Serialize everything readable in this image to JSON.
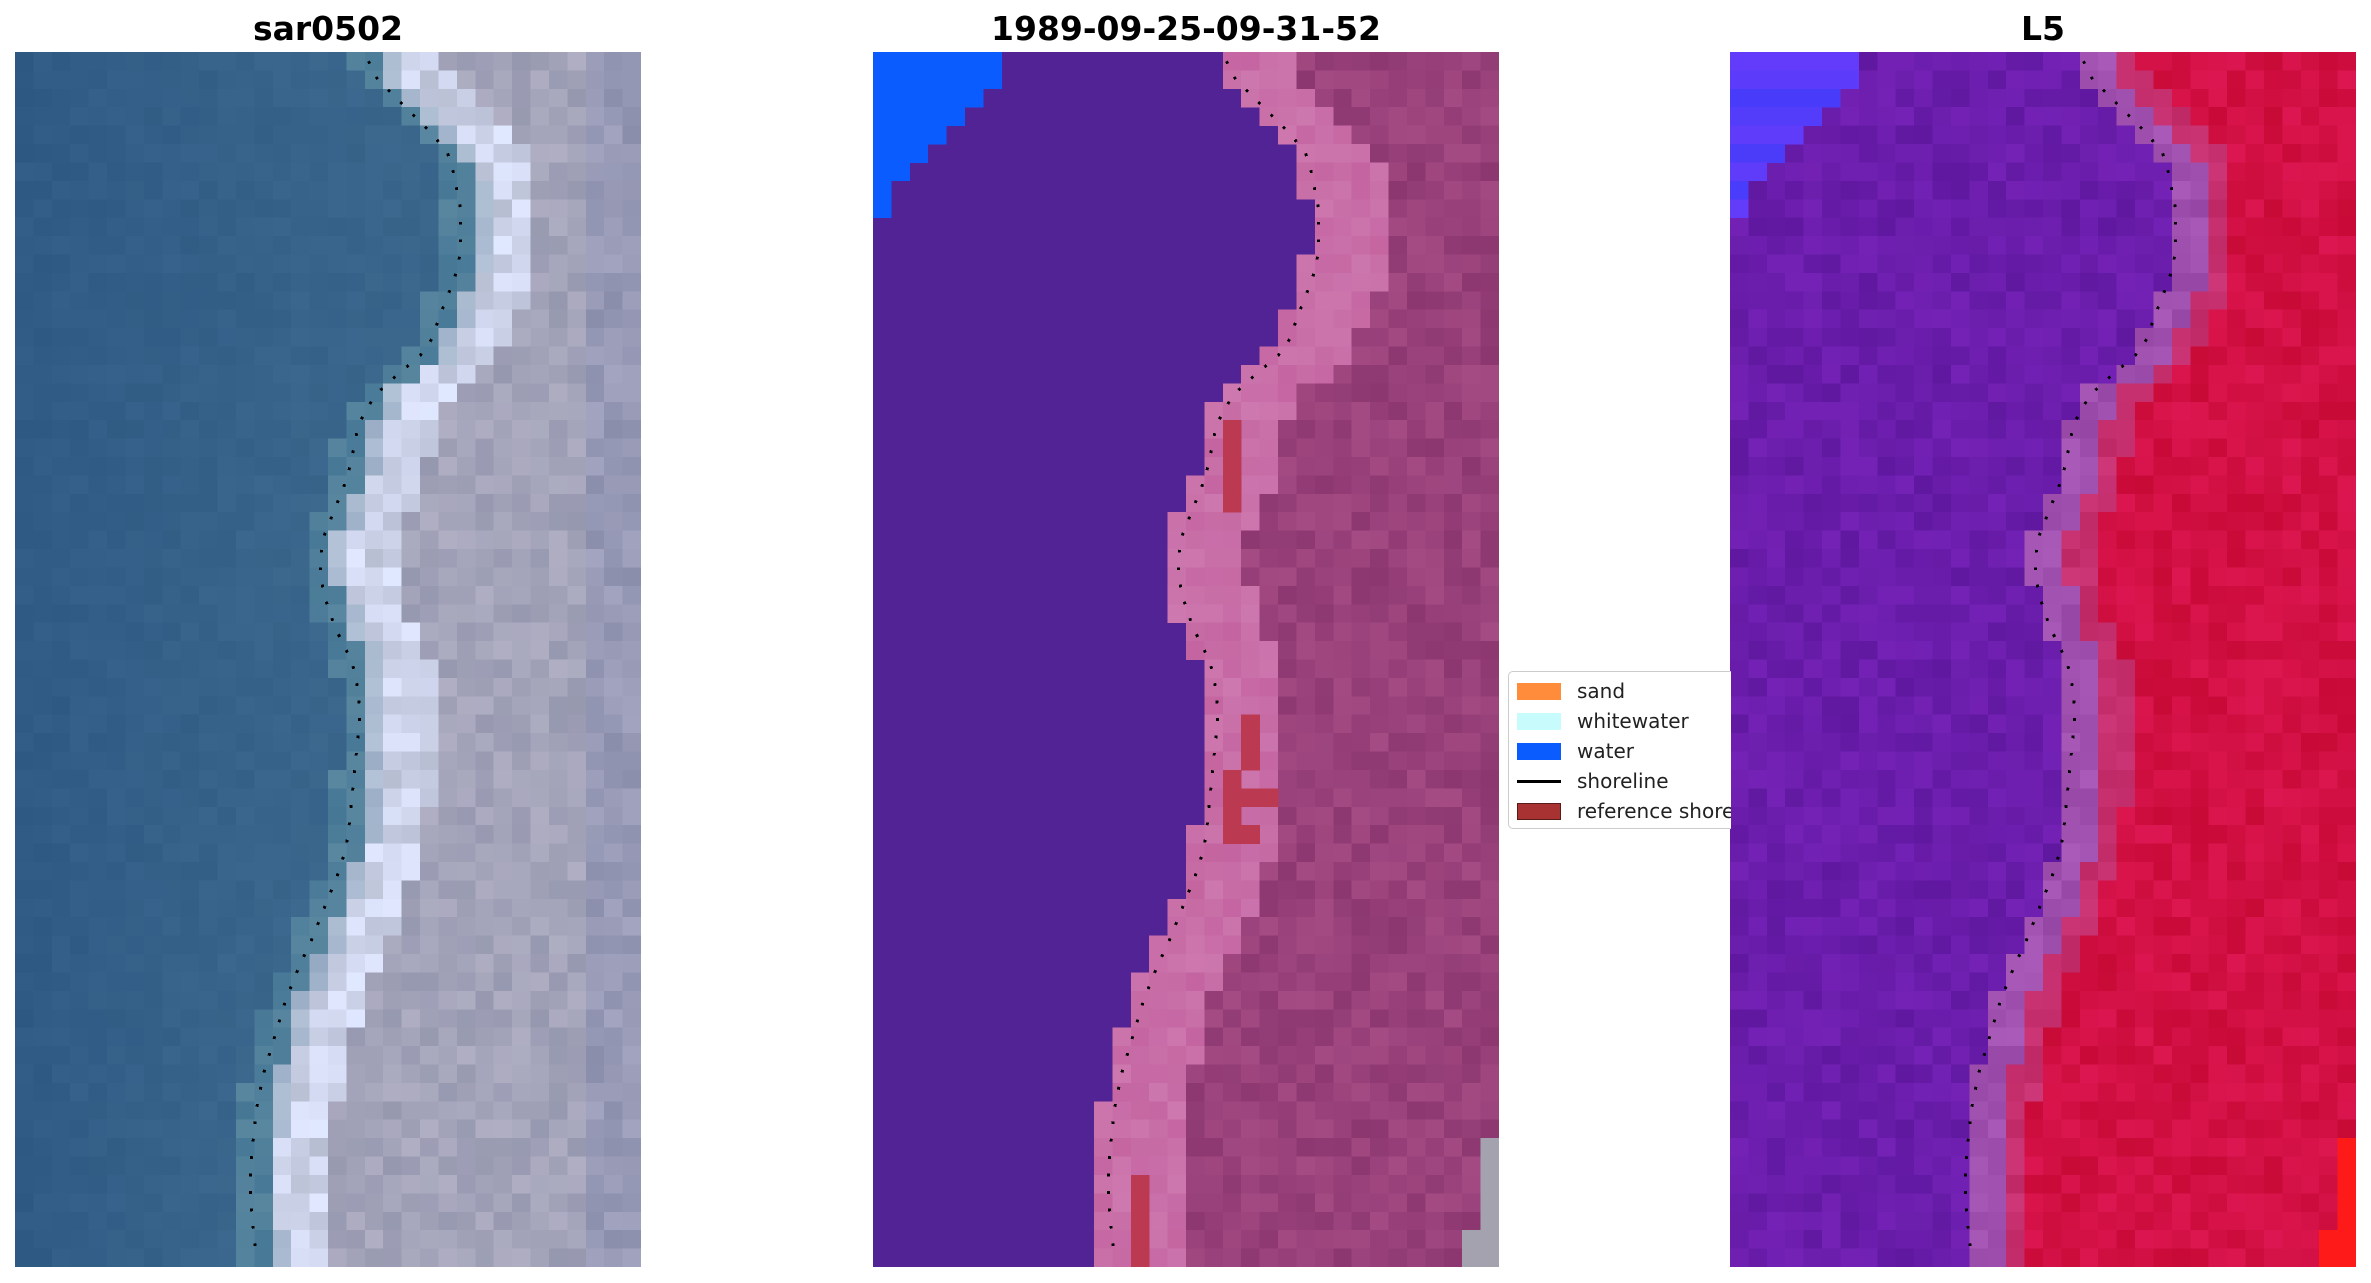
{
  "panels": [
    {
      "title": "sar0502",
      "name": "sar-image-panel"
    },
    {
      "title": "1989-09-25-09-31-52",
      "name": "classified-panel"
    },
    {
      "title": "L5",
      "name": "index-panel"
    }
  ],
  "legend": {
    "items": [
      {
        "label": "sand",
        "color": "#ff8c3a",
        "kind": "patch"
      },
      {
        "label": "whitewater",
        "color": "#c8fcfc",
        "kind": "patch"
      },
      {
        "label": "water",
        "color": "#0a5cff",
        "kind": "patch"
      },
      {
        "label": "shoreline",
        "color": "#000000",
        "kind": "line"
      },
      {
        "label": "reference shoreline",
        "color": "#a83232",
        "kind": "patch"
      }
    ]
  },
  "colors": {
    "sea_rgb": "#2c5a84",
    "land_rgb": "#9a9cb2",
    "class_water_other": "#512394",
    "class_land_other": "#8b3a6e",
    "class_water": "#0a5cff",
    "index_low": "#6a16a8",
    "index_high": "#c00030"
  }
}
